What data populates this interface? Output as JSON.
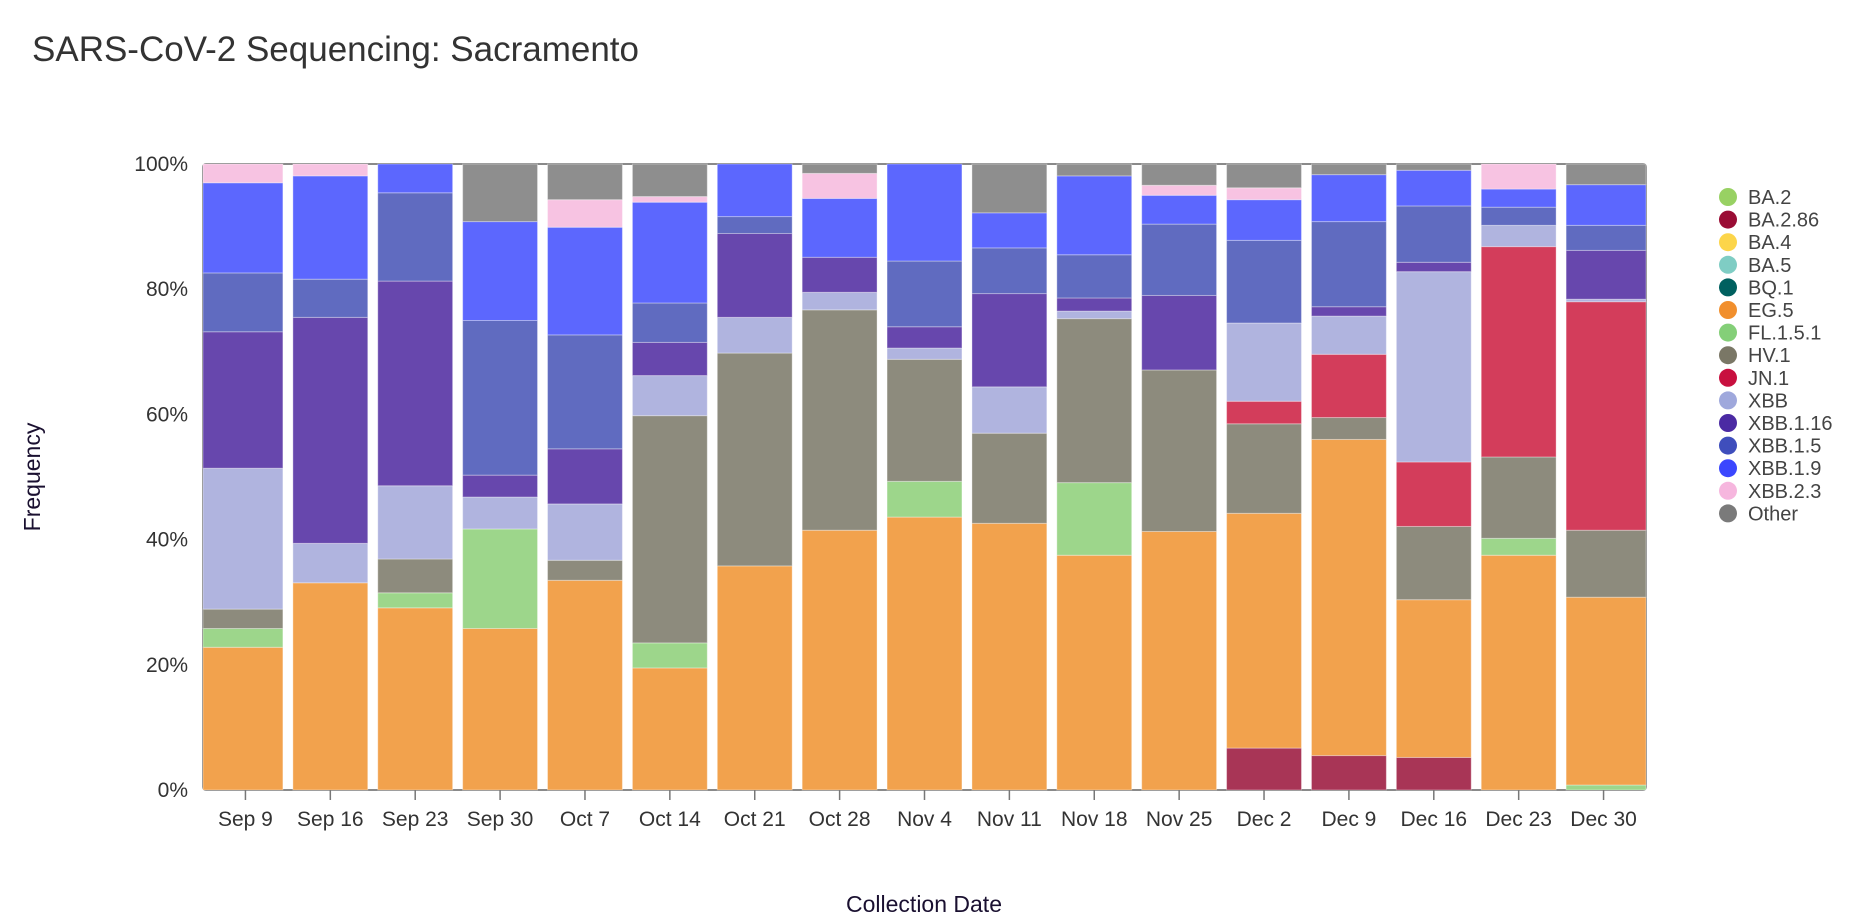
{
  "header": {
    "title": "SARS-CoV-2 Sequencing: Sacramento"
  },
  "chart_data": {
    "type": "bar",
    "stacked": true,
    "normalized": true,
    "title": "SARS-CoV-2 Sequencing: Sacramento",
    "xlabel": "Collection Date",
    "ylabel": "Frequency",
    "ylim": [
      0,
      100
    ],
    "yticks": [
      "0%",
      "20%",
      "40%",
      "60%",
      "80%",
      "100%"
    ],
    "ytick_values": [
      0,
      20,
      40,
      60,
      80,
      100
    ],
    "legend_position": "right",
    "categories": [
      "Sep 9",
      "Sep 16",
      "Sep 23",
      "Sep 30",
      "Oct 7",
      "Oct 14",
      "Oct 21",
      "Oct 28",
      "Nov 4",
      "Nov 11",
      "Nov 18",
      "Nov 25",
      "Dec 2",
      "Dec 9",
      "Dec 16",
      "Dec 23",
      "Dec 30"
    ],
    "legend": [
      {
        "name": "BA.2",
        "color": "#98d163"
      },
      {
        "name": "BA.2.86",
        "color": "#9a0d35"
      },
      {
        "name": "BA.4",
        "color": "#fcd54a"
      },
      {
        "name": "BA.5",
        "color": "#7fcdc4"
      },
      {
        "name": "BQ.1",
        "color": "#00605f"
      },
      {
        "name": "EG.5",
        "color": "#f18f2d"
      },
      {
        "name": "FL.1.5.1",
        "color": "#84cf78"
      },
      {
        "name": "HV.1",
        "color": "#7a7766"
      },
      {
        "name": "JN.1",
        "color": "#c8103f"
      },
      {
        "name": "XBB",
        "color": "#9fa8dc"
      },
      {
        "name": "XBB.1.16",
        "color": "#4b2aa3"
      },
      {
        "name": "XBB.1.5",
        "color": "#3f4ebc"
      },
      {
        "name": "XBB.1.9",
        "color": "#3b47fe"
      },
      {
        "name": "XBB.2.3",
        "color": "#f6b6de"
      },
      {
        "name": "Other",
        "color": "#7a7a7a"
      }
    ],
    "fill_colors": {
      "BA.2": "#9dd68b",
      "BA.2.86": "#a83556",
      "BA.4": "#fcdc6a",
      "BA.5": "#98d6ce",
      "BQ.1": "#337f7e",
      "EG.5": "#f2a24d",
      "FL.1.5.1": "#9dd68b",
      "HV.1": "#8d8b7d",
      "JN.1": "#d33d5b",
      "XBB": "#b0b4df",
      "XBB.1.16": "#6747ad",
      "XBB.1.5": "#606bc0",
      "XBB.1.9": "#5c67fe",
      "XBB.2.3": "#f7c3e2",
      "Other": "#8e8e8e"
    },
    "series": [
      {
        "name": "BA.2",
        "values": [
          0,
          0,
          0,
          0,
          0,
          0,
          0,
          0,
          0,
          0,
          0,
          0,
          0,
          0,
          0,
          0,
          0.8
        ]
      },
      {
        "name": "BA.2.86",
        "values": [
          0,
          0,
          0,
          0,
          0,
          0,
          0,
          0,
          0,
          0,
          0,
          0,
          6.7,
          5.5,
          5.2,
          0,
          0
        ]
      },
      {
        "name": "BA.4",
        "values": [
          0,
          0,
          0,
          0,
          0,
          0,
          0,
          0,
          0,
          0,
          0,
          0,
          0,
          0,
          0,
          0,
          0
        ]
      },
      {
        "name": "BA.5",
        "values": [
          0,
          0,
          0,
          0,
          0,
          0,
          0,
          0,
          0,
          0,
          0,
          0,
          0,
          0,
          0,
          0,
          0
        ]
      },
      {
        "name": "BQ.1",
        "values": [
          0,
          0,
          0,
          0,
          0,
          0,
          0,
          0,
          0,
          0,
          0,
          0,
          0,
          0,
          0,
          0,
          0
        ]
      },
      {
        "name": "EG.5",
        "values": [
          22.8,
          33.1,
          29.1,
          25.8,
          33.5,
          19.5,
          35.8,
          41.5,
          43.6,
          42.6,
          37.5,
          41.3,
          37.5,
          50.5,
          25.2,
          37.5,
          30.0
        ]
      },
      {
        "name": "FL.1.5.1",
        "values": [
          3.0,
          0,
          2.4,
          15.9,
          0,
          4.0,
          0,
          0,
          5.7,
          0,
          11.6,
          0,
          0,
          0,
          0,
          2.7,
          0
        ]
      },
      {
        "name": "HV.1",
        "values": [
          3.1,
          0,
          5.4,
          0,
          3.2,
          36.3,
          34.0,
          35.2,
          19.5,
          14.4,
          26.2,
          25.8,
          14.3,
          3.5,
          11.7,
          13.0,
          10.7
        ]
      },
      {
        "name": "JN.1",
        "values": [
          0,
          0,
          0,
          0,
          0,
          0,
          0,
          0,
          0,
          0,
          0,
          0,
          3.6,
          10.1,
          10.3,
          33.6,
          36.5
        ]
      },
      {
        "name": "XBB",
        "values": [
          22.5,
          6.3,
          11.7,
          5.1,
          9.0,
          6.4,
          5.7,
          2.8,
          1.8,
          7.4,
          1.2,
          0,
          12.5,
          6.1,
          30.4,
          3.4,
          0.4
        ]
      },
      {
        "name": "XBB.1.16",
        "values": [
          21.8,
          36.1,
          32.7,
          3.5,
          8.8,
          5.3,
          13.4,
          5.6,
          3.4,
          14.9,
          2.1,
          11.9,
          0,
          1.5,
          1.5,
          0,
          7.8
        ]
      },
      {
        "name": "XBB.1.5",
        "values": [
          9.4,
          6.1,
          14.1,
          24.7,
          18.2,
          6.3,
          2.7,
          0,
          10.5,
          7.3,
          6.9,
          11.4,
          13.2,
          13.6,
          9.0,
          2.9,
          4.0
        ]
      },
      {
        "name": "XBB.1.9",
        "values": [
          14.4,
          16.5,
          4.6,
          15.8,
          17.2,
          16.1,
          8.4,
          9.4,
          15.5,
          5.6,
          12.6,
          4.6,
          6.5,
          7.5,
          5.7,
          2.9,
          6.5
        ]
      },
      {
        "name": "XBB.2.3",
        "values": [
          3.0,
          1.9,
          0,
          0,
          4.4,
          0.9,
          0,
          4.0,
          0,
          0,
          0,
          1.6,
          1.9,
          0,
          0,
          4.0,
          0
        ]
      },
      {
        "name": "Other",
        "values": [
          0,
          0,
          0,
          9.2,
          5.7,
          5.2,
          0,
          1.5,
          0,
          7.8,
          1.9,
          3.4,
          3.8,
          1.7,
          1.0,
          0,
          3.3
        ]
      }
    ]
  }
}
